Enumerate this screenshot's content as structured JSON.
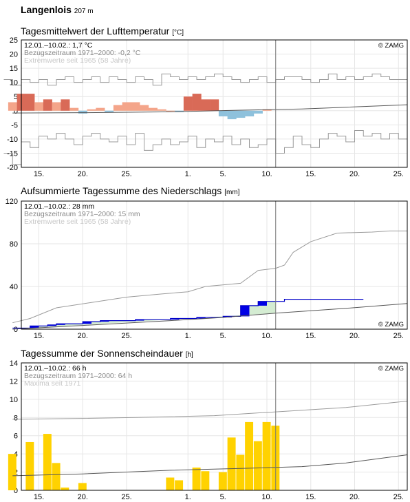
{
  "station": {
    "name": "Langenlois",
    "elevation": "207 m"
  },
  "chart_data": [
    {
      "type": "bar",
      "title": "Tagesmittelwert der Lufttemperatur",
      "unit": "[°C]",
      "ylim": [
        -20,
        25
      ],
      "yticks": [
        25,
        20,
        15,
        10,
        5,
        0,
        -5,
        -10,
        -15,
        -20
      ],
      "xlim": [
        13,
        57
      ],
      "xticks": [
        {
          "x": 15,
          "label": "15."
        },
        {
          "x": 20,
          "label": "20."
        },
        {
          "x": 25,
          "label": "25."
        },
        {
          "x": 32,
          "label": "1."
        },
        {
          "x": 36,
          "label": "5."
        },
        {
          "x": 41,
          "label": "10."
        },
        {
          "x": 46,
          "label": "15."
        },
        {
          "x": 51,
          "label": "20."
        },
        {
          "x": 56,
          "label": "25."
        }
      ],
      "now": 42,
      "info": [
        "12.01.–10.02.: 1,7 °C",
        "Bezugszeitraum 1971–2000: -0,2 °C",
        "Extremwerte seit 1965 (58 Jahre)"
      ],
      "copyright": "© ZAMG",
      "start_day": 12,
      "values": [
        3.0,
        6.0,
        6.0,
        3.0,
        4.0,
        3.0,
        4.0,
        1.0,
        -1.0,
        0.5,
        1.0,
        -0.5,
        2.0,
        3.0,
        3.0,
        2.0,
        1.0,
        0.5,
        0.0,
        -0.5,
        5.0,
        6.0,
        4.0,
        4.0,
        -2.0,
        -3.0,
        -2.5,
        -2.0,
        -1.0,
        0.5
      ],
      "mean_series": [
        [
          12,
          -0.8
        ],
        [
          20,
          -0.7
        ],
        [
          30,
          -0.4
        ],
        [
          38,
          0.2
        ],
        [
          45,
          0.6
        ],
        [
          57,
          2.1
        ]
      ],
      "max_series": [
        11,
        9,
        11,
        10,
        11,
        9,
        11,
        12,
        10,
        11,
        12,
        10,
        12,
        11,
        10,
        12,
        11,
        9,
        13,
        12,
        11,
        12,
        11,
        12,
        13,
        12,
        11,
        10,
        11,
        12,
        10,
        11,
        12,
        12,
        11,
        10,
        11,
        13,
        11,
        12,
        11,
        12,
        13,
        12,
        11,
        11
      ],
      "min_series": [
        -15,
        -19,
        -11,
        -13,
        -9,
        -10,
        -8,
        -10,
        -12,
        -9,
        -8,
        -10,
        -11,
        -9,
        -12,
        -8,
        -14,
        -12,
        -10,
        -12,
        -11,
        -9,
        -13,
        -10,
        -11,
        -9,
        -12,
        -10,
        -13,
        -12,
        -10,
        -15,
        -13,
        -9,
        -12,
        -13,
        -10,
        -8,
        -9,
        -11,
        -7,
        -9,
        -8,
        -10,
        -8,
        -10
      ]
    },
    {
      "type": "area",
      "title": "Aufsummierte Tagessumme des Niederschlags",
      "unit": "[mm]",
      "ylim": [
        0,
        120
      ],
      "yticks": [
        120,
        80,
        40,
        0
      ],
      "xlim": [
        13,
        57
      ],
      "now": 42,
      "info": [
        "12.01.–10.02.: 28 mm",
        "Bezugszeitraum 1971–2000: 15 mm",
        "Extremwerte seit 1965 (58 Jahre)"
      ],
      "copyright": "© ZAMG",
      "actual_cumulative": [
        0,
        1,
        1,
        3,
        3,
        5,
        5,
        5,
        6,
        6,
        8,
        8,
        9,
        9,
        9,
        10,
        10,
        10,
        11,
        11,
        11,
        12,
        13,
        13,
        14,
        14,
        14,
        15,
        16,
        16,
        16,
        17,
        17,
        18,
        18,
        18,
        18,
        19,
        19,
        20
      ],
      "actual_cum": [
        1,
        1,
        3,
        3,
        4,
        5,
        5,
        5,
        7,
        7,
        8,
        8,
        8,
        8,
        9,
        9,
        9,
        9,
        10,
        10,
        10,
        11,
        11,
        11,
        12,
        12,
        22,
        22,
        26,
        26,
        26,
        28,
        28,
        28,
        28,
        28,
        28,
        28,
        28,
        28
      ],
      "mean_cum": [
        [
          12,
          0
        ],
        [
          20,
          3.5
        ],
        [
          30,
          8
        ],
        [
          36,
          11
        ],
        [
          42,
          15
        ],
        [
          50,
          19.5
        ],
        [
          57,
          24
        ]
      ],
      "max_cum": [
        [
          12,
          6
        ],
        [
          14,
          10
        ],
        [
          17,
          20
        ],
        [
          21,
          25
        ],
        [
          25,
          30
        ],
        [
          29,
          33
        ],
        [
          32,
          35
        ],
        [
          34,
          40
        ],
        [
          38,
          43
        ],
        [
          40,
          55
        ],
        [
          42,
          57
        ],
        [
          43,
          60
        ],
        [
          44,
          72
        ],
        [
          46,
          82
        ],
        [
          49,
          90
        ],
        [
          53,
          91
        ],
        [
          55,
          92
        ],
        [
          57,
          92
        ]
      ]
    },
    {
      "type": "bar",
      "title": "Tagessumme der Sonnenscheindauer",
      "unit": "[h]",
      "ylim": [
        0,
        14
      ],
      "yticks": [
        14,
        12,
        10,
        8,
        6,
        4,
        2,
        0
      ],
      "xlim": [
        13,
        57
      ],
      "now": 42,
      "info": [
        "12.01.–10.02.: 66 h",
        "Bezugszeitraum 1971–2000: 64 h",
        "Maxima seit 1971"
      ],
      "copyright": "© ZAMG",
      "start_day": 12,
      "values": [
        4.0,
        0,
        5.3,
        0,
        6.2,
        3.0,
        0.3,
        0,
        0.8,
        0,
        0,
        0,
        0,
        0,
        0,
        0,
        0,
        0,
        1.4,
        1.1,
        0,
        2.5,
        2.1,
        0,
        2.0,
        5.8,
        3.9,
        7.5,
        5.4,
        7.5,
        7.1
      ],
      "mean_series": [
        [
          12,
          1.6
        ],
        [
          20,
          1.8
        ],
        [
          30,
          2.2
        ],
        [
          38,
          2.4
        ],
        [
          45,
          2.6
        ],
        [
          50,
          3.0
        ],
        [
          57,
          3.9
        ]
      ],
      "max_series": [
        [
          12,
          7.8
        ],
        [
          20,
          7.9
        ],
        [
          26,
          8.0
        ],
        [
          35,
          8.2
        ],
        [
          40,
          8.5
        ],
        [
          45,
          8.8
        ],
        [
          50,
          9.1
        ],
        [
          57,
          9.8
        ]
      ]
    }
  ]
}
